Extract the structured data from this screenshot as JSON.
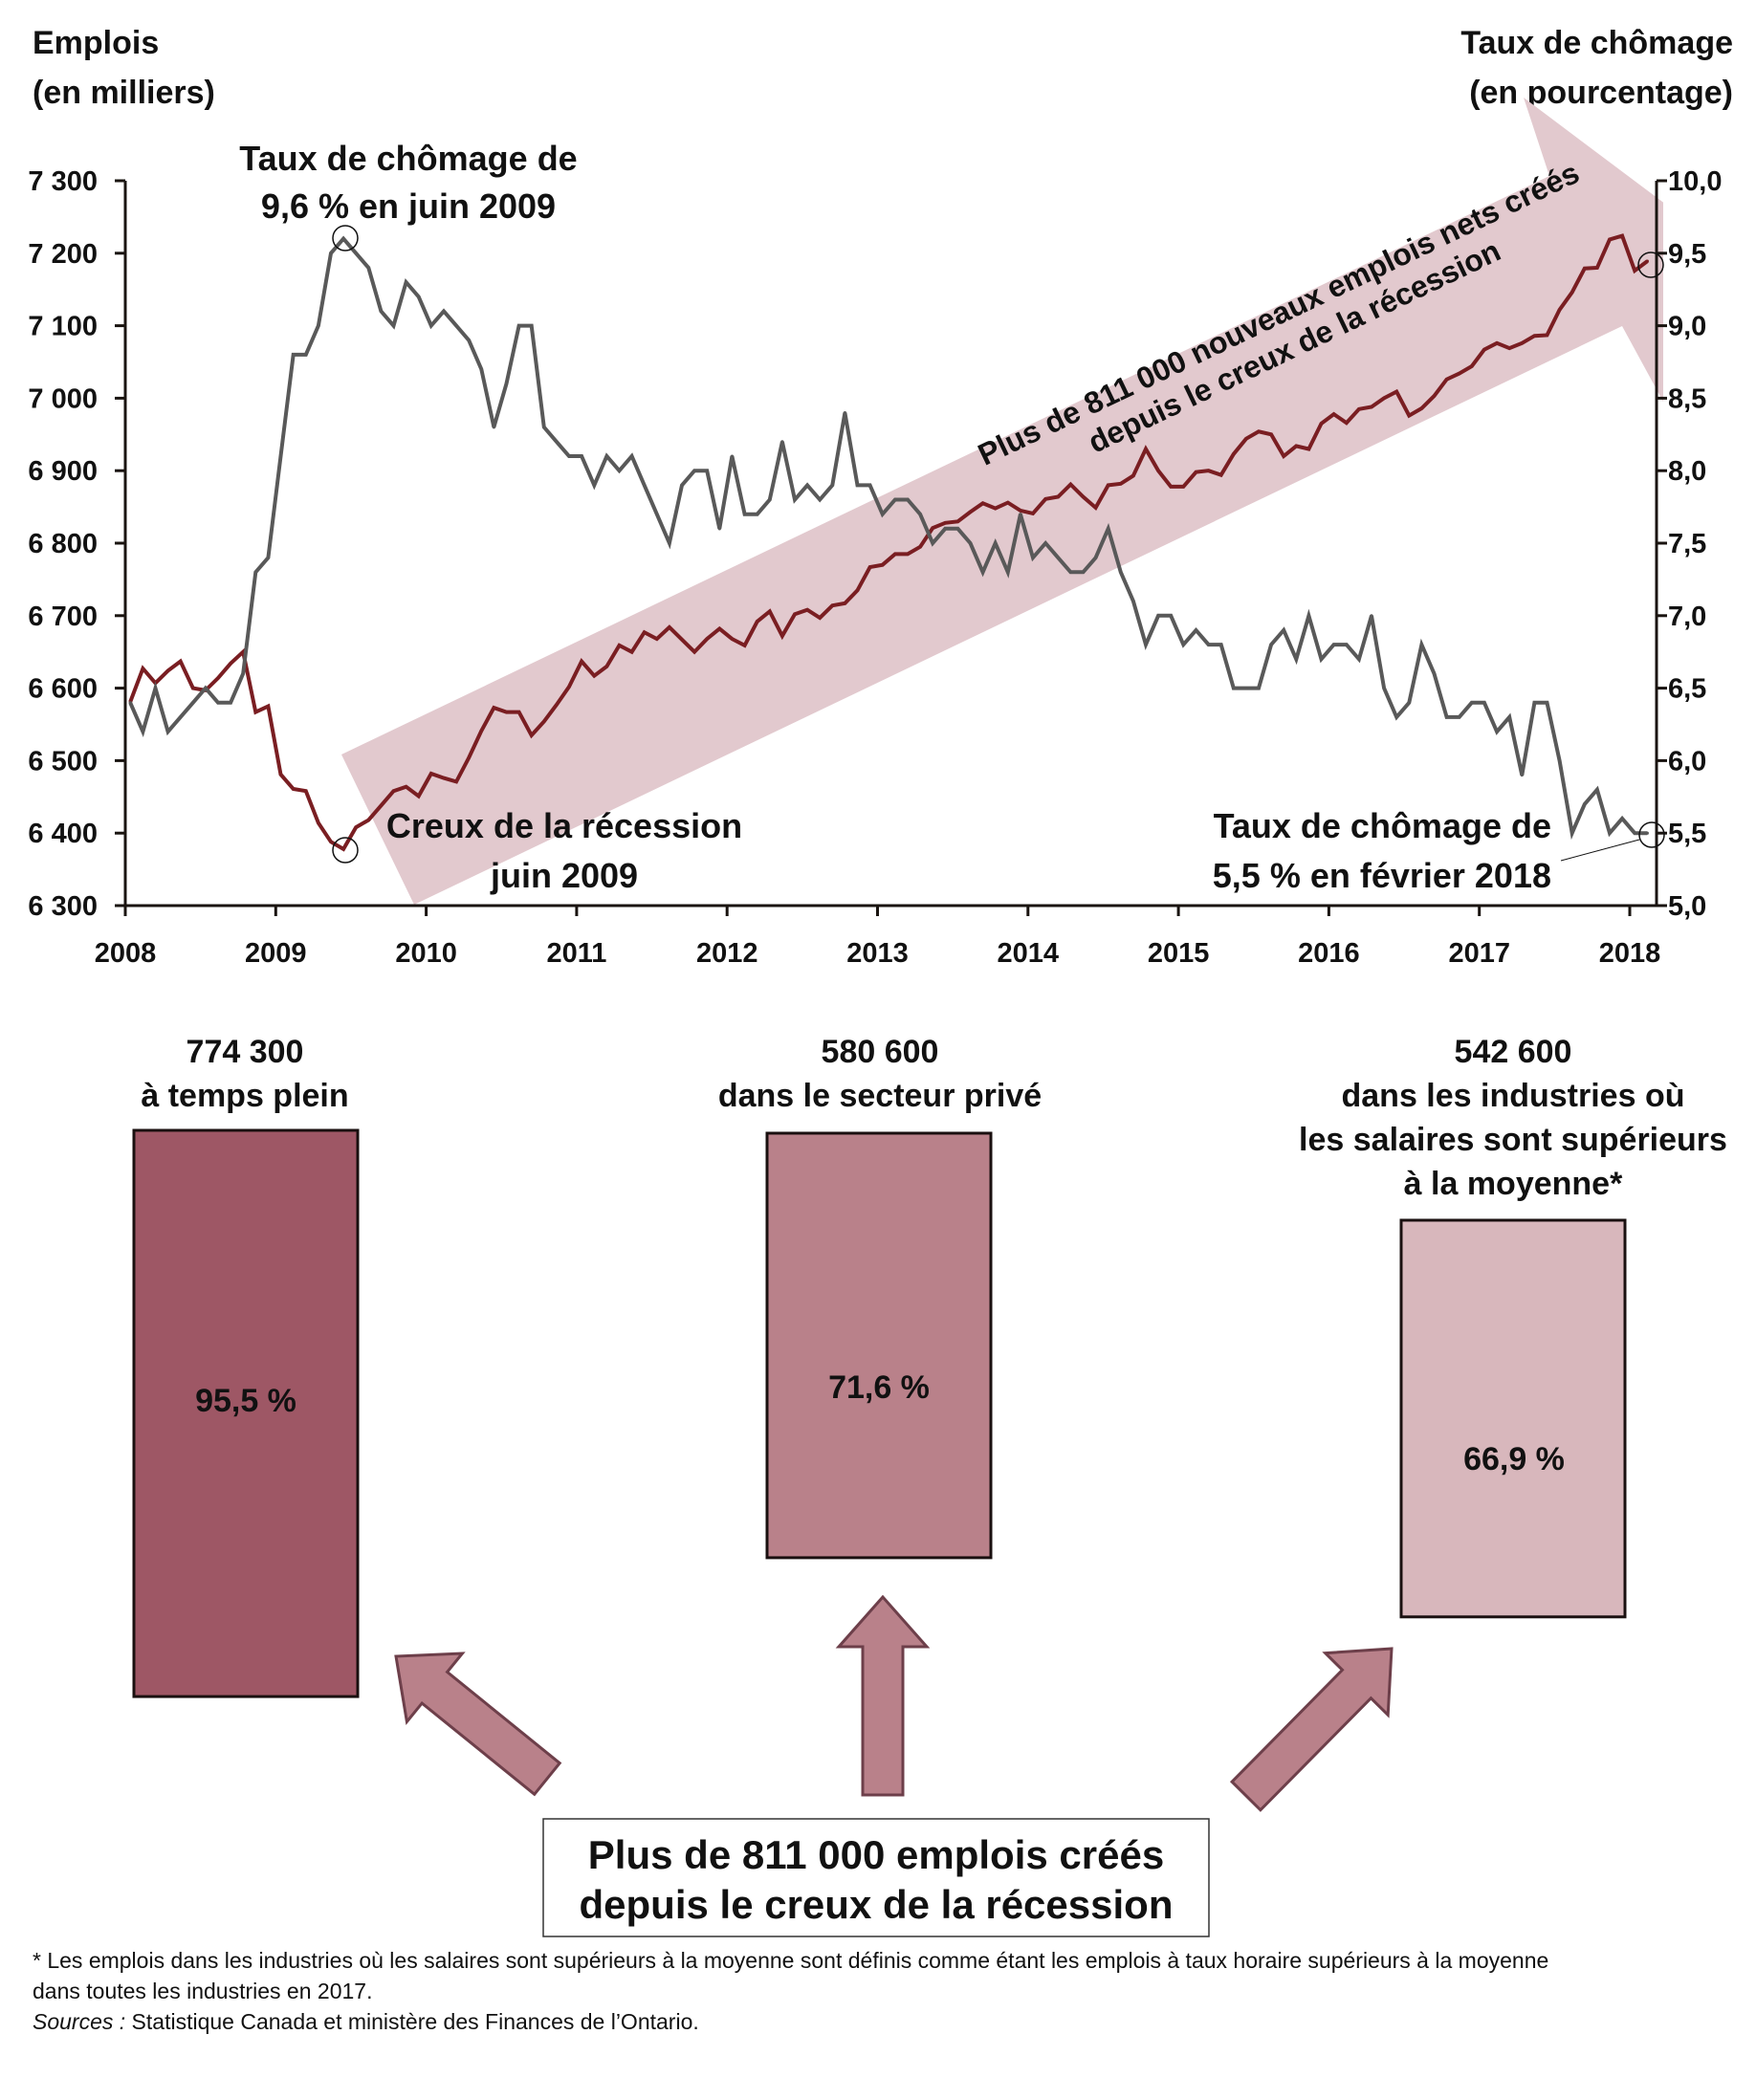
{
  "chart_data": [
    {
      "type": "line",
      "title": "",
      "left_axis": {
        "label_line1": "Emplois",
        "label_line2": "(en milliers)",
        "ylim": [
          6300,
          7300
        ],
        "ticks": [
          "6 300",
          "6 400",
          "6 500",
          "6 600",
          "6 700",
          "6 800",
          "6 900",
          "7 000",
          "7 100",
          "7 200",
          "7 300"
        ]
      },
      "right_axis": {
        "label_line1": "Taux de chômage",
        "label_line2": "(en pourcentage)",
        "ylim": [
          5.0,
          10.0
        ],
        "ticks": [
          "5,0",
          "5,5",
          "6,0",
          "6,5",
          "7,0",
          "7,5",
          "8,0",
          "8,5",
          "9,0",
          "9,5",
          "10,0"
        ]
      },
      "x_ticks": [
        "2008",
        "2009",
        "2010",
        "2011",
        "2012",
        "2013",
        "2014",
        "2015",
        "2016",
        "2017",
        "2018"
      ],
      "x_start": "2008-01",
      "x_end": "2018-02",
      "frequency": "monthly",
      "grid": false,
      "series": [
        {
          "name": "Emplois",
          "axis": "left",
          "color": "#7a1e22",
          "values": [
            6581,
            6627,
            6607,
            6624,
            6637,
            6600,
            6597,
            6614,
            6634,
            6650,
            6567,
            6575,
            6481,
            6461,
            6458,
            6414,
            6388,
            6378,
            6408,
            6418,
            6438,
            6458,
            6464,
            6451,
            6482,
            6476,
            6471,
            6504,
            6541,
            6573,
            6567,
            6567,
            6535,
            6554,
            6577,
            6602,
            6637,
            6617,
            6630,
            6659,
            6650,
            6677,
            6668,
            6684,
            6667,
            6650,
            6668,
            6682,
            6668,
            6659,
            6692,
            6706,
            6672,
            6702,
            6708,
            6697,
            6714,
            6717,
            6735,
            6767,
            6770,
            6785,
            6785,
            6795,
            6821,
            6828,
            6830,
            6843,
            6855,
            6848,
            6856,
            6845,
            6841,
            6861,
            6864,
            6881,
            6864,
            6849,
            6880,
            6882,
            6893,
            6930,
            6900,
            6878,
            6878,
            6898,
            6900,
            6894,
            6923,
            6944,
            6954,
            6950,
            6920,
            6934,
            6930,
            6965,
            6978,
            6966,
            6985,
            6988,
            7000,
            7009,
            6976,
            6986,
            7003,
            7026,
            7034,
            7044,
            7067,
            7076,
            7069,
            7076,
            7086,
            7087,
            7122,
            7146,
            7179,
            7180,
            7219,
            7224,
            7176,
            7189
          ]
        },
        {
          "name": "Taux de chômage",
          "axis": "right",
          "color": "#595959",
          "values": [
            6.4,
            6.2,
            6.5,
            6.2,
            6.3,
            6.4,
            6.5,
            6.4,
            6.4,
            6.6,
            7.3,
            7.4,
            8.1,
            8.8,
            8.8,
            9.0,
            9.5,
            9.6,
            9.5,
            9.4,
            9.1,
            9.0,
            9.3,
            9.2,
            9.0,
            9.1,
            9.0,
            8.9,
            8.7,
            8.3,
            8.6,
            9.0,
            9.0,
            8.3,
            8.2,
            8.1,
            8.1,
            7.9,
            8.1,
            8.0,
            8.1,
            7.9,
            7.7,
            7.5,
            7.9,
            8.0,
            8.0,
            7.6,
            8.1,
            7.7,
            7.7,
            7.8,
            8.2,
            7.8,
            7.9,
            7.8,
            7.9,
            8.4,
            7.9,
            7.9,
            7.7,
            7.8,
            7.8,
            7.7,
            7.5,
            7.6,
            7.6,
            7.5,
            7.3,
            7.5,
            7.3,
            7.7,
            7.4,
            7.5,
            7.4,
            7.3,
            7.3,
            7.4,
            7.6,
            7.3,
            7.1,
            6.8,
            7.0,
            7.0,
            6.8,
            6.9,
            6.8,
            6.8,
            6.5,
            6.5,
            6.5,
            6.8,
            6.9,
            6.7,
            7.0,
            6.7,
            6.8,
            6.8,
            6.7,
            7.0,
            6.5,
            6.3,
            6.4,
            6.8,
            6.6,
            6.3,
            6.3,
            6.4,
            6.4,
            6.2,
            6.3,
            5.9,
            6.4,
            6.4,
            6.0,
            5.5,
            5.7,
            5.8,
            5.5,
            5.6,
            5.5,
            5.5
          ]
        }
      ],
      "annotations": {
        "peak_line1": "Taux de chômage de",
        "peak_line2": "9,6 % en juin 2009",
        "trough_line1": "Creux de la récession",
        "trough_line2": "juin 2009",
        "latest_line1": "Taux de chômage de",
        "latest_line2": "5,5 % en février 2018",
        "arrow_line1": "Plus de 811 000 nouveaux emplois nets créés",
        "arrow_line2": "depuis le creux de la récession",
        "arrow_color": "#e2c9ce"
      }
    },
    {
      "type": "bar",
      "categories": [
        "à temps plein",
        "dans le secteur privé",
        "dans les industries où les salaires sont supérieurs à la moyenne*"
      ],
      "values": [
        95.5,
        71.6,
        66.9
      ],
      "value_labels": [
        "95,5 %",
        "71,6 %",
        "66,9 %"
      ],
      "counts": [
        "774 300",
        "580 600",
        "542 600"
      ],
      "colors": [
        "#9e5765",
        "#b9818a",
        "#d8b7bc"
      ]
    }
  ],
  "bars": [
    {
      "count": "774 300",
      "lines": [
        "à temps plein"
      ],
      "pct": "95,5 %"
    },
    {
      "count": "580 600",
      "lines": [
        "dans le secteur privé"
      ],
      "pct": "71,6 %"
    },
    {
      "count": "542 600",
      "lines": [
        "dans les industries où",
        "les salaires sont supérieurs",
        "à la moyenne*"
      ],
      "pct": "66,9 %"
    }
  ],
  "summary_box": {
    "line1": "Plus de 811 000 emplois créés",
    "line2": "depuis le creux de la récession"
  },
  "footnote": {
    "line1": "* Les emplois dans les industries où les salaires sont supérieurs à la moyenne sont définis comme étant les emplois à taux horaire supérieurs à la moyenne",
    "line2": "dans toutes les industries en 2017.",
    "sources_label": "Sources :",
    "sources_text": " Statistique Canada et ministère des Finances de l’Ontario."
  }
}
